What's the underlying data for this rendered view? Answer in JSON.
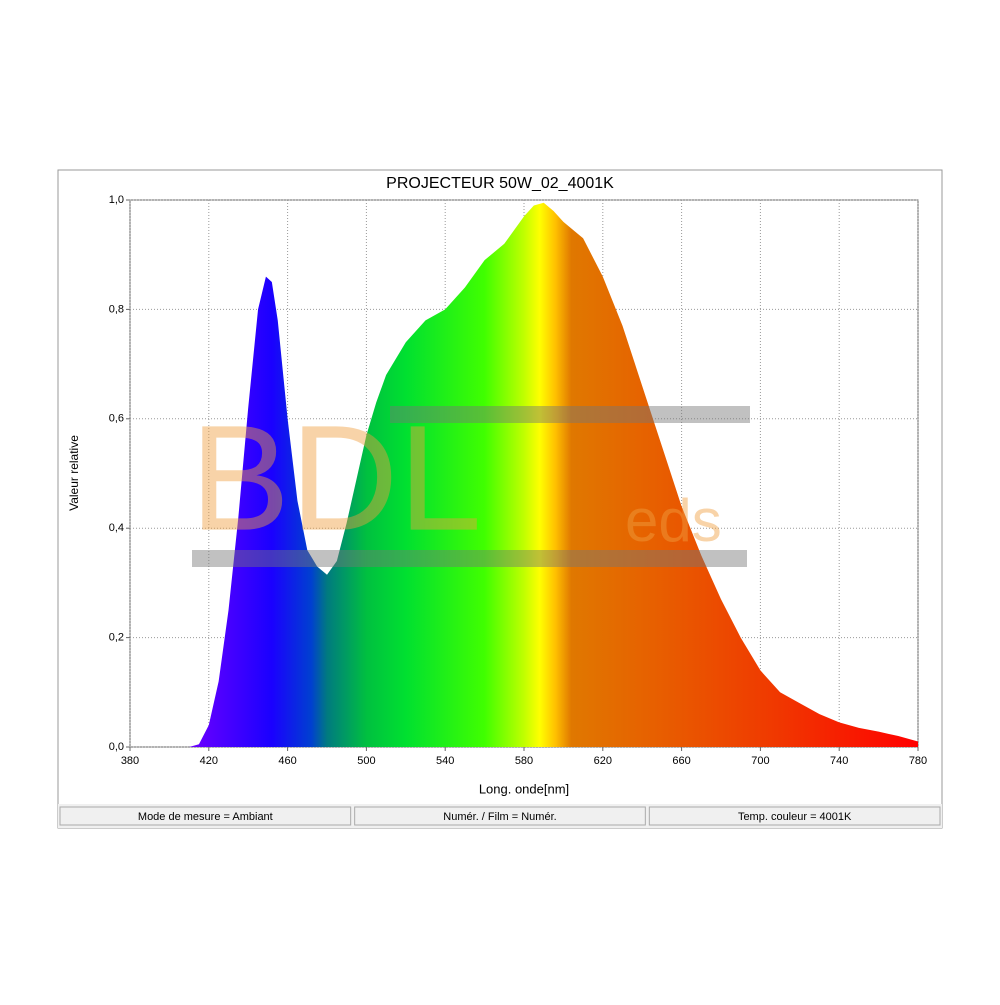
{
  "chart_data": {
    "type": "area",
    "title": "PROJECTEUR 50W_02_4001K",
    "xlabel": "Long. onde[nm]",
    "ylabel": "Valeur relative",
    "watermark": [
      "BDL",
      "eds"
    ],
    "x": [
      410,
      415,
      420,
      425,
      430,
      435,
      440,
      445,
      449,
      452,
      455,
      460,
      465,
      470,
      475,
      480,
      485,
      490,
      495,
      500,
      505,
      510,
      520,
      530,
      540,
      550,
      560,
      570,
      580,
      585,
      590,
      595,
      600,
      610,
      620,
      630,
      640,
      650,
      660,
      670,
      680,
      690,
      700,
      710,
      720,
      730,
      740,
      750,
      760,
      770,
      780
    ],
    "values": [
      0,
      0.005,
      0.04,
      0.12,
      0.25,
      0.42,
      0.62,
      0.8,
      0.86,
      0.85,
      0.78,
      0.6,
      0.45,
      0.36,
      0.33,
      0.315,
      0.34,
      0.41,
      0.49,
      0.57,
      0.63,
      0.68,
      0.74,
      0.78,
      0.8,
      0.84,
      0.89,
      0.92,
      0.97,
      0.99,
      0.995,
      0.98,
      0.96,
      0.93,
      0.86,
      0.77,
      0.66,
      0.55,
      0.44,
      0.35,
      0.27,
      0.2,
      0.14,
      0.1,
      0.08,
      0.06,
      0.045,
      0.035,
      0.028,
      0.02,
      0.01
    ],
    "xlim": [
      380,
      780
    ],
    "xticks": [
      380,
      420,
      460,
      500,
      540,
      580,
      620,
      660,
      700,
      740,
      780
    ],
    "ylim": [
      0,
      1
    ],
    "yticks": [
      {
        "value": 0,
        "label": "0,0"
      },
      {
        "value": 0.2,
        "label": "0,2"
      },
      {
        "value": 0.4,
        "label": "0,4"
      },
      {
        "value": 0.6,
        "label": "0,6"
      },
      {
        "value": 0.8,
        "label": "0,8"
      },
      {
        "value": 1,
        "label": "1,0"
      }
    ],
    "grid": true,
    "footer": [
      "Mode de mesure = Ambiant",
      "Numér. / Film = Numér.",
      "Temp. couleur = 4001K"
    ]
  }
}
